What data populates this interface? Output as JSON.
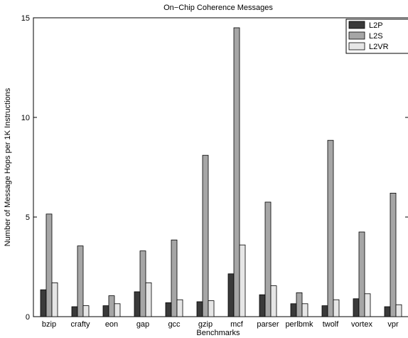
{
  "chart_data": {
    "type": "bar",
    "title": "On−Chip Coherence Messages",
    "xlabel": "Benchmarks",
    "ylabel": "Number of Message Hops per 1K Instructions",
    "ylim": [
      0,
      15
    ],
    "yticks": [
      0,
      5,
      10,
      15
    ],
    "grid": false,
    "legend_position": "top-right",
    "categories": [
      "bzip",
      "crafty",
      "eon",
      "gap",
      "gcc",
      "gzip",
      "mcf",
      "parser",
      "perlbmk",
      "twolf",
      "vortex",
      "vpr"
    ],
    "series": [
      {
        "name": "L2P",
        "color": "#3a3a3a",
        "values": [
          1.35,
          0.5,
          0.55,
          1.25,
          0.7,
          0.75,
          2.15,
          1.1,
          0.65,
          0.55,
          0.9,
          0.5
        ]
      },
      {
        "name": "L2S",
        "color": "#a6a6a6",
        "values": [
          5.15,
          3.55,
          1.05,
          3.3,
          3.85,
          8.1,
          14.5,
          5.75,
          1.2,
          8.85,
          4.25,
          6.2
        ]
      },
      {
        "name": "L2VR",
        "color": "#e6e6e6",
        "values": [
          1.7,
          0.55,
          0.65,
          1.7,
          0.85,
          0.8,
          3.6,
          1.55,
          0.65,
          0.85,
          1.15,
          0.6
        ]
      }
    ]
  }
}
